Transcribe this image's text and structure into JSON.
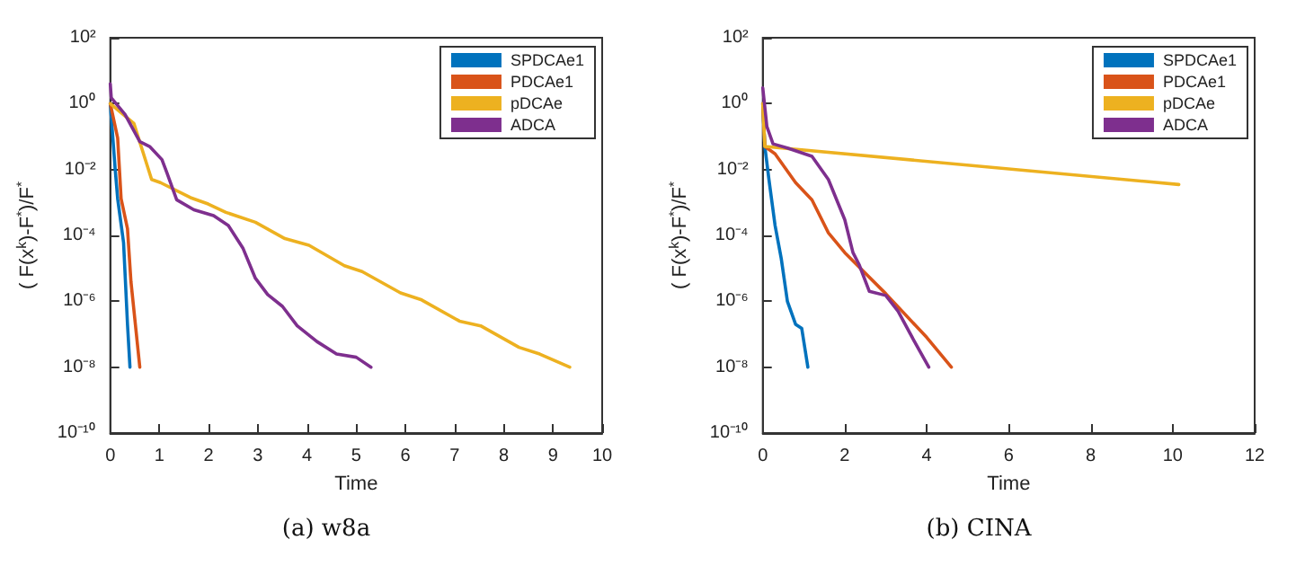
{
  "chart_data": [
    {
      "type": "line",
      "title": "(a) w8a",
      "xlabel": "Time",
      "ylabel": "( F(x$^{k}$)-F$^{*}$)/F$^{*}$",
      "log": "y",
      "grid": false,
      "legend": "top right",
      "marker": "none",
      "line_style": "solid",
      "xlim": [
        0,
        10
      ],
      "xticks": [
        0,
        1,
        2,
        3,
        4,
        5,
        6,
        7,
        8,
        9,
        10
      ],
      "ylim": [
        1e-10,
        100
      ],
      "yticks": [
        {
          "value": 1e-10,
          "label": "10⁻¹⁰"
        },
        {
          "value": 1e-08,
          "label": "10⁻⁸"
        },
        {
          "value": 1e-06,
          "label": "10⁻⁶"
        },
        {
          "value": 0.0001,
          "label": "10⁻⁴"
        },
        {
          "value": 0.01,
          "label": "10⁻²"
        },
        {
          "value": 1,
          "label": "10⁰"
        },
        {
          "value": 100,
          "label": "10²"
        }
      ],
      "series": [
        {
          "name": "SPDCAe1",
          "color": "#0072bd",
          "x": [
            0,
            0.1,
            0.15,
            0.27,
            0.35,
            0.4
          ],
          "values": [
            1,
            0.01,
            0.0013,
            6e-05,
            2e-07,
            1e-08
          ]
        },
        {
          "name": "PDCAe1",
          "color": "#d95319",
          "x": [
            0,
            0.15,
            0.22,
            0.35,
            0.42,
            0.6
          ],
          "values": [
            1,
            0.09,
            0.0013,
            0.00016,
            4e-06,
            1e-08
          ]
        },
        {
          "name": "pDCAe",
          "color": "#edb120",
          "x": [
            0,
            0.48,
            0.84,
            1.02,
            1.63,
            1.99,
            2.35,
            2.95,
            3.55,
            4.04,
            4.76,
            5.12,
            5.9,
            6.33,
            7.1,
            7.53,
            8.31,
            8.73,
            9.34
          ],
          "values": [
            1,
            0.25,
            0.005,
            0.004,
            0.0014,
            0.0009,
            0.0005,
            0.00025,
            8e-05,
            5e-05,
            1.2e-05,
            8e-06,
            1.8e-06,
            1.1e-06,
            2.5e-07,
            1.8e-07,
            4e-08,
            2.5e-08,
            1e-08
          ]
        },
        {
          "name": "ADCA",
          "color": "#7e2f8e",
          "x": [
            0,
            0.02,
            0.3,
            0.6,
            0.8,
            1.05,
            1.15,
            1.35,
            1.7,
            2.1,
            2.4,
            2.7,
            2.95,
            3.2,
            3.5,
            3.8,
            4.2,
            4.6,
            5,
            5.3
          ],
          "values": [
            4,
            1.5,
            0.47,
            0.07,
            0.05,
            0.02,
            0.008,
            0.0012,
            0.0006,
            0.0004,
            0.0002,
            4e-05,
            5e-06,
            1.6e-06,
            7e-07,
            1.8e-07,
            6e-08,
            2.5e-08,
            2e-08,
            1e-08
          ]
        }
      ]
    },
    {
      "type": "line",
      "title": "(b) CINA",
      "xlabel": "Time",
      "ylabel": "( F(x$^{k}$)-F$^{*}$)/F$^{*}$",
      "log": "y",
      "grid": false,
      "legend": "top right",
      "marker": "none",
      "line_style": "solid",
      "xlim": [
        0,
        12
      ],
      "xticks": [
        0,
        2,
        4,
        6,
        8,
        10,
        12
      ],
      "ylim": [
        1e-10,
        100
      ],
      "yticks": [
        {
          "value": 1e-10,
          "label": "10⁻¹⁰"
        },
        {
          "value": 1e-08,
          "label": "10⁻⁸"
        },
        {
          "value": 1e-06,
          "label": "10⁻⁶"
        },
        {
          "value": 0.0001,
          "label": "10⁻⁴"
        },
        {
          "value": 0.01,
          "label": "10⁻²"
        },
        {
          "value": 1,
          "label": "10⁰"
        },
        {
          "value": 100,
          "label": "10²"
        }
      ],
      "series": [
        {
          "name": "SPDCAe1",
          "color": "#0072bd",
          "x": [
            0,
            0.05,
            0.15,
            0.3,
            0.45,
            0.6,
            0.8,
            0.95,
            1.1
          ],
          "values": [
            1,
            0.05,
            0.005,
            0.0002,
            2e-05,
            1e-06,
            2e-07,
            1.5e-07,
            1e-08
          ]
        },
        {
          "name": "PDCAe1",
          "color": "#d95319",
          "x": [
            0,
            0.05,
            0.3,
            0.8,
            1.2,
            1.6,
            2,
            3,
            4,
            4.6
          ],
          "values": [
            1,
            0.05,
            0.03,
            0.004,
            0.0012,
            0.00012,
            3e-05,
            1.7e-06,
            8e-08,
            1e-08
          ]
        },
        {
          "name": "pDCAe",
          "color": "#edb120",
          "x": [
            0,
            0.05,
            10.15
          ],
          "values": [
            1,
            0.05,
            0.0035
          ]
        },
        {
          "name": "ADCA",
          "color": "#7e2f8e",
          "x": [
            0,
            0.1,
            0.25,
            0.6,
            1.2,
            1.6,
            2,
            2.2,
            2.35,
            2.6,
            3,
            3.3,
            3.7,
            4.05
          ],
          "values": [
            3,
            0.2,
            0.06,
            0.045,
            0.025,
            0.005,
            0.0003,
            3e-05,
            1.3e-05,
            2e-06,
            1.5e-06,
            5e-07,
            6e-08,
            1e-08
          ]
        }
      ]
    }
  ]
}
